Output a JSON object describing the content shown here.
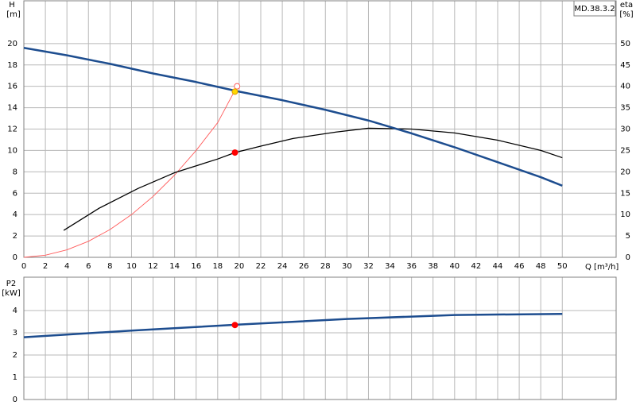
{
  "chart_data": [
    {
      "type": "line",
      "model_label": "MD.38.3.2",
      "y_label": "H",
      "y_unit": "[m]",
      "y2_label": "eta",
      "y2_unit": "[%]",
      "x_label": "Q [m³/h]",
      "xlim": [
        0,
        55
      ],
      "xticks": [
        0,
        2,
        4,
        6,
        8,
        10,
        12,
        14,
        16,
        18,
        20,
        22,
        24,
        26,
        28,
        30,
        32,
        34,
        36,
        38,
        40,
        42,
        44,
        46,
        48,
        50
      ],
      "ylim": [
        0,
        24
      ],
      "yticks": [
        0,
        2,
        4,
        6,
        8,
        10,
        12,
        14,
        16,
        18,
        20
      ],
      "y2lim": [
        0,
        60
      ],
      "y2ticks": [
        0,
        5,
        10,
        15,
        20,
        25,
        30,
        35,
        40,
        45,
        50
      ],
      "grid": true,
      "series": [
        {
          "style": "thin",
          "color": "#ff5a5a",
          "x": [
            0,
            2,
            4,
            6,
            8,
            10,
            12,
            14,
            16,
            18,
            19.8
          ],
          "values": [
            0,
            0.2,
            0.7,
            1.5,
            2.6,
            4.0,
            5.7,
            7.7,
            10.0,
            12.6,
            16.0
          ]
        },
        {
          "style": "normal",
          "color": "#000000",
          "axis": "y2",
          "x": [
            3.7,
            7,
            10.6,
            14,
            18,
            19.6,
            22,
            25,
            29,
            32,
            36,
            40,
            44,
            48,
            50
          ],
          "values": [
            6.3,
            11.5,
            16.1,
            19.8,
            23,
            24.5,
            26,
            27.8,
            29.3,
            30.2,
            30,
            29.1,
            27.4,
            25,
            23.3
          ]
        },
        {
          "style": "thick",
          "color": "#1d4d8f",
          "x": [
            0,
            4,
            8,
            12,
            16,
            20,
            24,
            28,
            32,
            36,
            40,
            44,
            48,
            50
          ],
          "values": [
            19.6,
            18.9,
            18.1,
            17.2,
            16.4,
            15.5,
            14.7,
            13.8,
            12.8,
            11.6,
            10.3,
            8.9,
            7.5,
            6.7
          ]
        },
        {
          "style": "open-marker",
          "color": "#ff5a5a",
          "x": [
            19.8
          ],
          "values": [
            16.0
          ]
        },
        {
          "style": "marker",
          "color": "#ffd700",
          "x": [
            19.6
          ],
          "values": [
            15.5
          ]
        },
        {
          "style": "marker",
          "color": "#ff0000",
          "axis": "y2",
          "x": [
            19.6
          ],
          "values": [
            24.5
          ]
        }
      ]
    },
    {
      "type": "line",
      "y_label": "P2",
      "y_unit": "[kW]",
      "xlim": [
        0,
        55
      ],
      "xticks": [
        0,
        2,
        4,
        6,
        8,
        10,
        12,
        14,
        16,
        18,
        20,
        22,
        24,
        26,
        28,
        30,
        32,
        34,
        36,
        38,
        40,
        42,
        44,
        46,
        48,
        50
      ],
      "ylim": [
        0,
        5.5
      ],
      "yticks": [
        0,
        1,
        2,
        3,
        4
      ],
      "grid": true,
      "series": [
        {
          "style": "thick",
          "color": "#1d4d8f",
          "x": [
            0,
            10,
            20,
            30,
            40,
            50
          ],
          "values": [
            2.8,
            3.1,
            3.37,
            3.62,
            3.8,
            3.85
          ]
        },
        {
          "style": "marker",
          "color": "#ff0000",
          "x": [
            19.6
          ],
          "values": [
            3.35
          ]
        }
      ]
    }
  ]
}
